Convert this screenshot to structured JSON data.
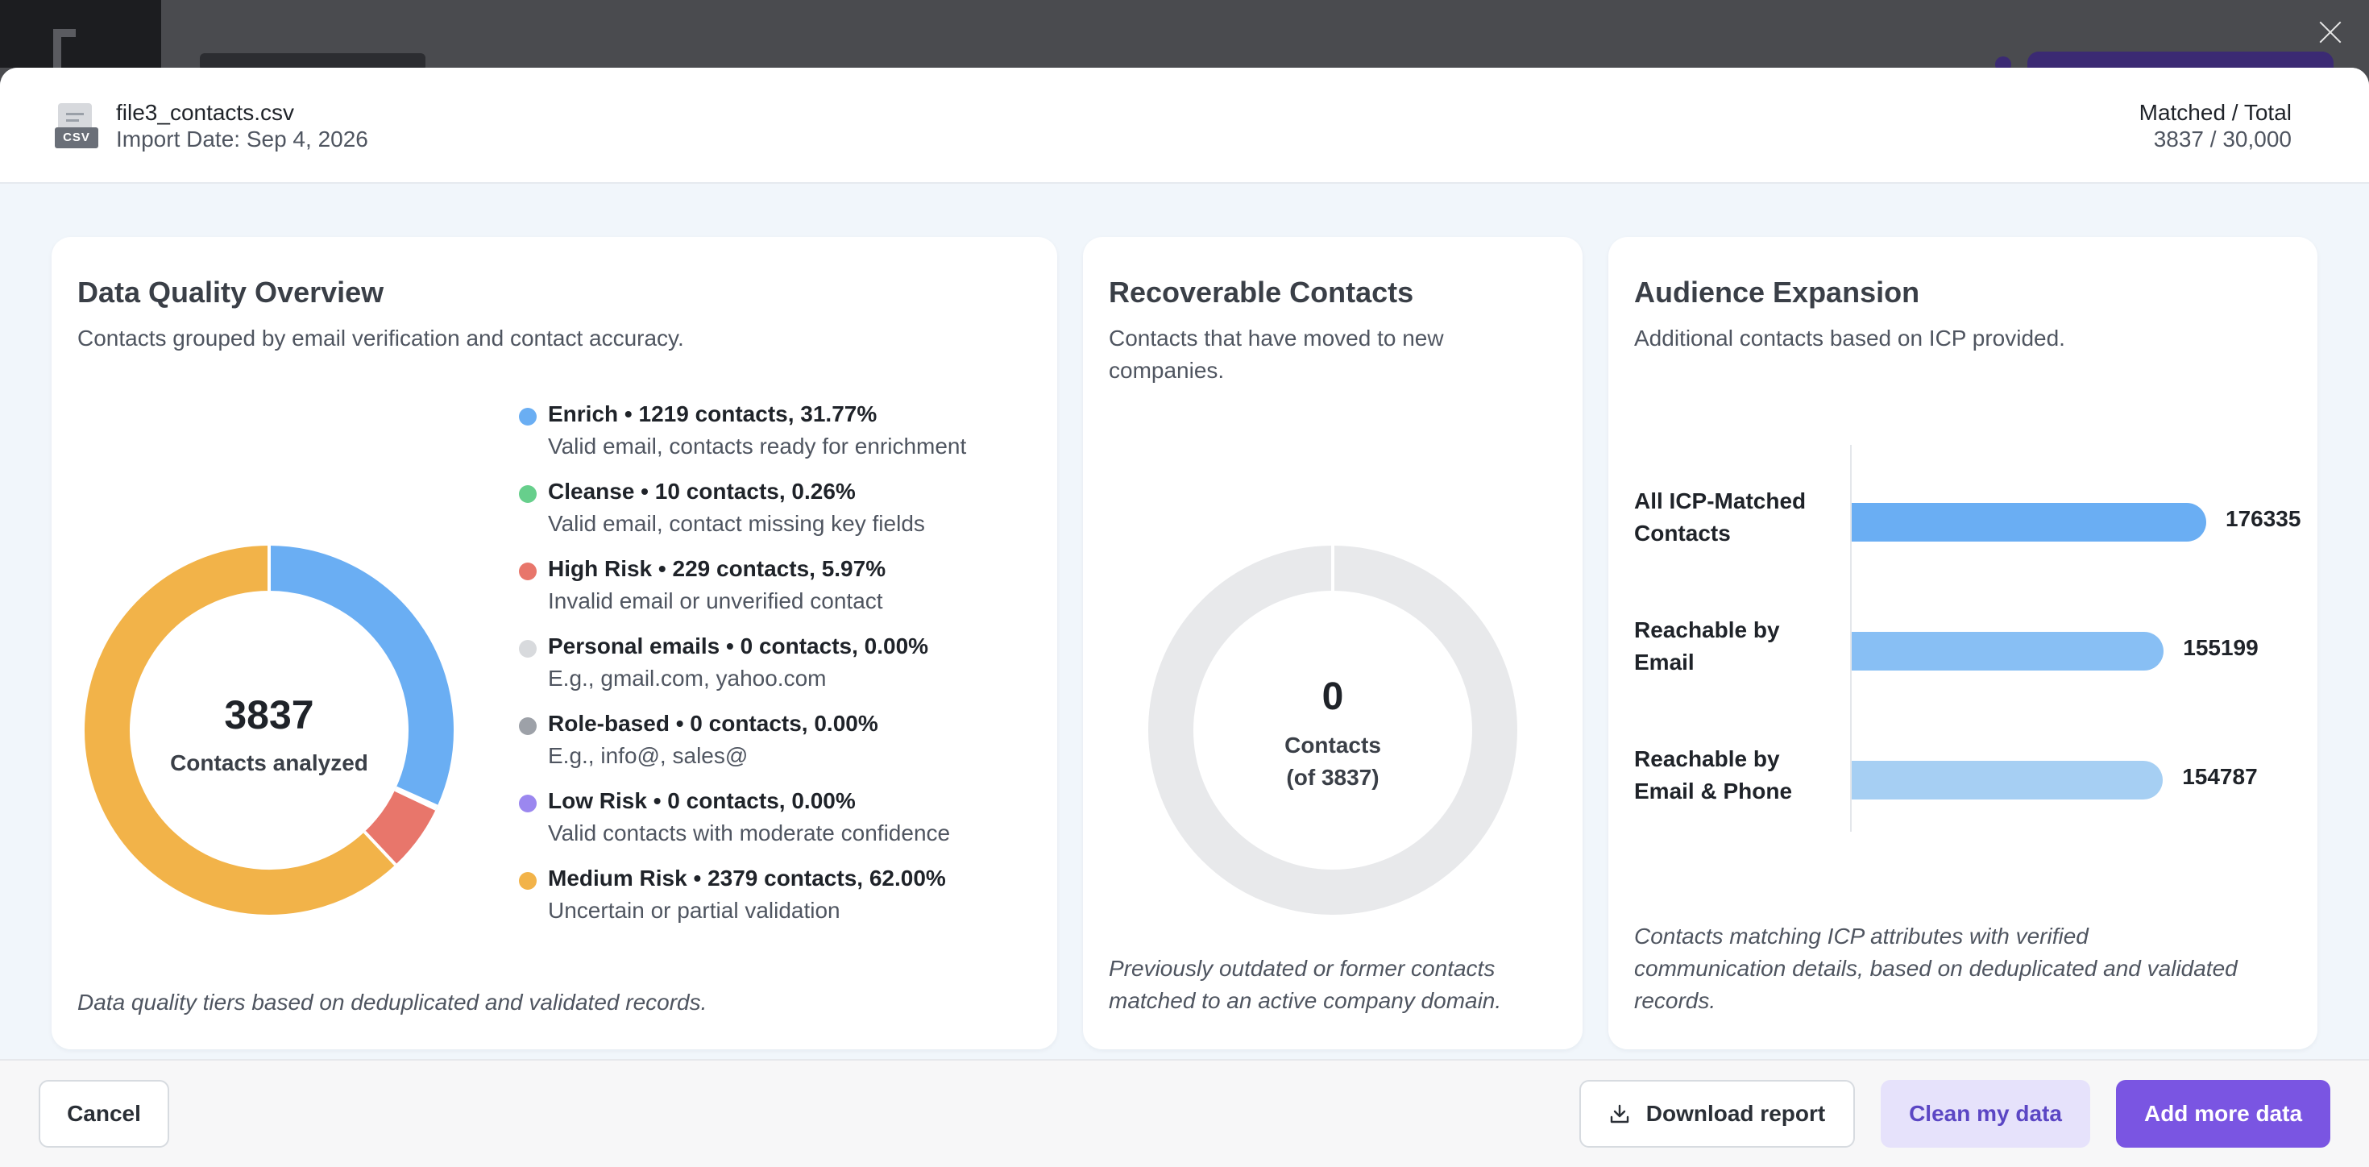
{
  "file": {
    "name": "file3_contacts.csv",
    "icon_tag": "CSV",
    "import_date": "Import Date: Sep 4, 2026"
  },
  "matched": {
    "label": "Matched / Total",
    "value": "3837 / 30,000"
  },
  "data_quality": {
    "title": "Data Quality Overview",
    "subtitle": "Contacts grouped by email verification and contact accuracy.",
    "center_value": "3837",
    "center_label": "Contacts analyzed",
    "footnote": "Data quality tiers based on deduplicated and validated records.",
    "legend": [
      {
        "name": "Enrich",
        "meta": " • 1219 contacts, 31.77%",
        "desc": "Valid email, contacts ready for enrichment",
        "color": "#6aaef3"
      },
      {
        "name": "Cleanse",
        "meta": " • 10 contacts, 0.26%",
        "desc": "Valid email, contact missing key fields",
        "color": "#67cf8c"
      },
      {
        "name": "High Risk",
        "meta": " • 229 contacts, 5.97%",
        "desc": "Invalid email or unverified contact",
        "color": "#e8766b"
      },
      {
        "name": "Personal emails",
        "meta": " • 0 contacts, 0.00%",
        "desc": "E.g., gmail.com, yahoo.com",
        "color": "#d8dadd"
      },
      {
        "name": "Role-based",
        "meta": " • 0 contacts, 0.00%",
        "desc": "E.g., info@, sales@",
        "color": "#9da1a8"
      },
      {
        "name": "Low Risk",
        "meta": " • 0 contacts, 0.00%",
        "desc": "Valid contacts with moderate confidence",
        "color": "#9b87ef"
      },
      {
        "name": "Medium Risk",
        "meta": " • 2379 contacts, 62.00%",
        "desc": "Uncertain or partial validation",
        "color": "#f2b349"
      }
    ]
  },
  "chart_data": [
    {
      "type": "pie",
      "categories": [
        "Enrich",
        "Cleanse",
        "High Risk",
        "Personal emails",
        "Role-based",
        "Low Risk",
        "Medium Risk"
      ],
      "values": [
        1219,
        10,
        229,
        0,
        0,
        0,
        2379
      ]
    },
    {
      "type": "pie",
      "categories": [
        "Recoverable"
      ],
      "values": [
        0
      ],
      "total": 3837
    },
    {
      "type": "bar",
      "categories": [
        "All ICP-Matched Contacts",
        "Reachable by Email",
        "Reachable by Email & Phone"
      ],
      "values": [
        176335,
        155199,
        154787
      ]
    }
  ],
  "recoverable": {
    "title": "Recoverable Contacts",
    "subtitle_1": "Contacts that have moved to new",
    "subtitle_2": "companies.",
    "center_value": "0",
    "center_label_1": "Contacts",
    "center_label_2": "(of 3837)",
    "foot_1": "Previously outdated or former contacts",
    "foot_2": "matched to an active company domain."
  },
  "audience": {
    "title": "Audience Expansion",
    "subtitle": "Additional contacts based on ICP provided.",
    "bars": [
      {
        "label_1": "All ICP-Matched",
        "label_2": "Contacts",
        "value": "176335",
        "color": "#6aaef3"
      },
      {
        "label_1": "Reachable by",
        "label_2": "Email",
        "value": "155199",
        "color": "#88bff4"
      },
      {
        "label_1": "Reachable by",
        "label_2": "Email & Phone",
        "value": "154787",
        "color": "#a6cff3"
      }
    ],
    "foot_1": "Contacts matching ICP attributes with verified",
    "foot_2": "communication details, based on deduplicated and validated",
    "foot_3": "records."
  },
  "footer": {
    "cancel": "Cancel",
    "download": "Download report",
    "clean": "Clean my data",
    "add": "Add more data"
  }
}
